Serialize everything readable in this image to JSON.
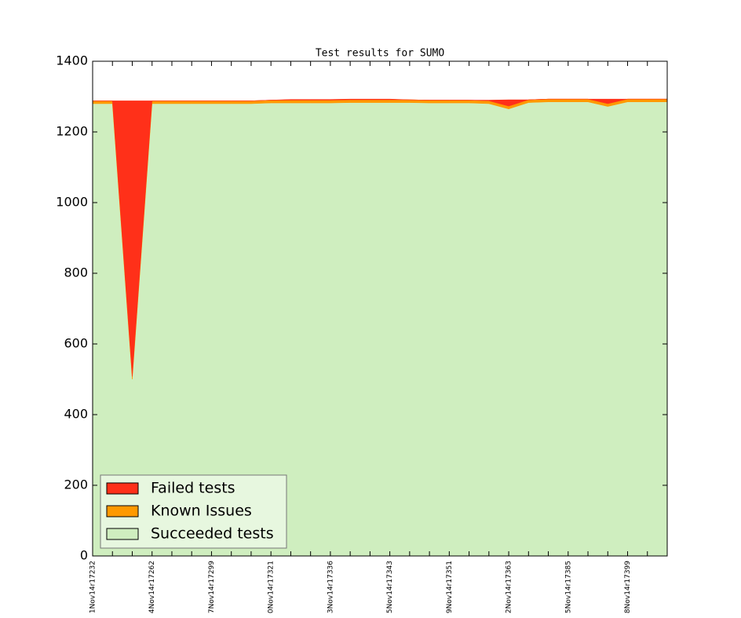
{
  "chart_data": {
    "type": "stacked-area",
    "title": "Test results for SUMO",
    "categories": [
      "1Nov14r17232",
      null,
      null,
      "4Nov14r17262",
      null,
      null,
      "7Nov14r17299",
      null,
      null,
      "0Nov14r17321",
      null,
      null,
      "3Nov14r17336",
      null,
      null,
      "5Nov14r17343",
      null,
      null,
      "9Nov14r17351",
      null,
      null,
      "2Nov14r17363",
      null,
      null,
      "5Nov14r17385",
      null,
      null,
      "8Nov14r17399",
      null,
      null
    ],
    "series": [
      {
        "name": "Succeeded tests",
        "color": "#cfeebf",
        "values": [
          1280,
          1280,
          500,
          1280,
          1280,
          1280,
          1280,
          1280,
          1280,
          1282,
          1282,
          1282,
          1282,
          1283,
          1283,
          1283,
          1283,
          1282,
          1282,
          1282,
          1280,
          1265,
          1283,
          1285,
          1285,
          1285,
          1272,
          1285,
          1285,
          1285
        ]
      },
      {
        "name": "Known Issues",
        "color": "#ff9900",
        "values": [
          8,
          8,
          8,
          8,
          8,
          8,
          8,
          8,
          8,
          8,
          8,
          8,
          8,
          8,
          8,
          8,
          8,
          8,
          8,
          8,
          8,
          8,
          8,
          8,
          8,
          8,
          8,
          8,
          8,
          8
        ]
      },
      {
        "name": "Failed tests",
        "color": "#ff3019",
        "values": [
          0,
          0,
          780,
          0,
          0,
          0,
          0,
          0,
          0,
          0,
          2,
          2,
          2,
          2,
          2,
          2,
          0,
          0,
          0,
          0,
          2,
          18,
          0,
          0,
          0,
          0,
          13,
          0,
          0,
          0
        ]
      }
    ],
    "ylim": [
      0,
      1400
    ],
    "yticks": [
      0,
      200,
      400,
      600,
      800,
      1000,
      1200,
      1400
    ],
    "grid": false,
    "legend": "lower left"
  }
}
